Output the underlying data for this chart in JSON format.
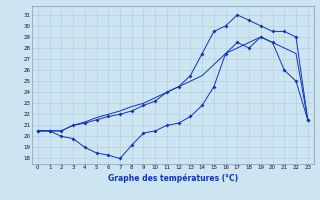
{
  "xlabel": "Graphe des températures (°C)",
  "bg_color": "#cce5f0",
  "grid_color": "#aaccdd",
  "line_color": "#1133bb",
  "ylim": [
    17.5,
    31.8
  ],
  "xlim": [
    -0.5,
    23.5
  ],
  "yticks": [
    18,
    19,
    20,
    21,
    22,
    23,
    24,
    25,
    26,
    27,
    28,
    29,
    30,
    31
  ],
  "xticks": [
    0,
    1,
    2,
    3,
    4,
    5,
    6,
    7,
    8,
    9,
    10,
    11,
    12,
    13,
    14,
    15,
    16,
    17,
    18,
    19,
    20,
    21,
    22,
    23
  ],
  "line_low_x": [
    0,
    1,
    2,
    3,
    4,
    5,
    6,
    7,
    8,
    9,
    10,
    11,
    12,
    13,
    14,
    15,
    16,
    17,
    18,
    19,
    20,
    21,
    22,
    23
  ],
  "line_low_y": [
    20.5,
    20.5,
    20.0,
    19.8,
    19.0,
    18.5,
    18.3,
    18.0,
    19.2,
    20.3,
    20.5,
    21.0,
    21.2,
    21.8,
    22.8,
    24.5,
    27.5,
    28.5,
    28.0,
    29.0,
    28.5,
    26.0,
    25.0,
    21.5
  ],
  "line_high_x": [
    0,
    1,
    2,
    3,
    4,
    5,
    6,
    7,
    8,
    9,
    10,
    11,
    12,
    13,
    14,
    15,
    16,
    17,
    18,
    19,
    20,
    21,
    22,
    23
  ],
  "line_high_y": [
    20.5,
    20.5,
    20.5,
    21.0,
    21.2,
    21.5,
    21.8,
    22.0,
    22.3,
    22.8,
    23.2,
    24.0,
    24.5,
    25.5,
    27.5,
    29.5,
    30.0,
    31.0,
    30.5,
    30.0,
    29.5,
    29.5,
    29.0,
    21.5
  ],
  "line_mid_x": [
    0,
    1,
    2,
    3,
    4,
    5,
    6,
    7,
    8,
    9,
    10,
    11,
    12,
    13,
    14,
    15,
    16,
    17,
    18,
    19,
    20,
    21,
    22,
    23
  ],
  "line_mid_y": [
    20.5,
    20.5,
    20.5,
    21.0,
    21.3,
    21.7,
    22.0,
    22.3,
    22.7,
    23.0,
    23.5,
    24.0,
    24.5,
    25.0,
    25.5,
    26.5,
    27.5,
    28.0,
    28.5,
    29.0,
    28.5,
    28.0,
    27.5,
    21.5
  ]
}
